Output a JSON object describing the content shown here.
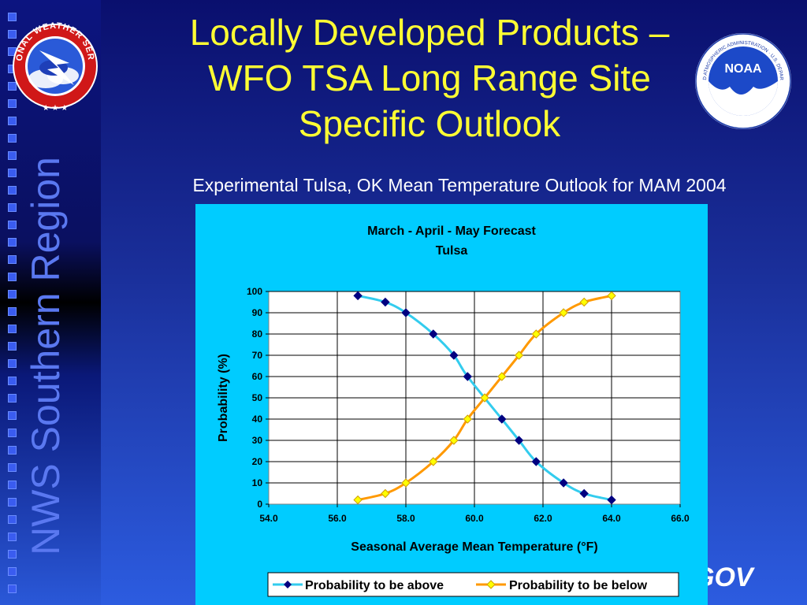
{
  "slide": {
    "title_lines": [
      "Locally Developed Products –",
      "WFO TSA Long Range Site",
      "Specific Outlook"
    ],
    "subtitle": "Experimental Tulsa, OK Mean Temperature Outlook for MAM 2004",
    "sidebar_label": "NWS Southern Region",
    "footer_url": "GOV",
    "colors": {
      "title": "#ffff33",
      "chart_background": "#00ccff",
      "series_above": "#33ccee",
      "series_above_marker": "#000080",
      "series_below": "#ff9900",
      "series_below_marker": "#ffff00"
    }
  },
  "logos": {
    "nws": {
      "icon": "nws-logo-icon",
      "ring_text": "NATIONAL WEATHER SERVICE"
    },
    "noaa": {
      "icon": "noaa-logo-icon",
      "center_text": "NOAA",
      "ring_text": "NATIONAL OCEANIC AND ATMOSPHERIC ADMINISTRATION · U.S. DEPARTMENT OF COMMERCE"
    }
  },
  "chart_data": {
    "type": "line",
    "title": "March - April - May Forecast",
    "subtitle": "Tulsa",
    "xlabel": "Seasonal Average Mean Temperature (°F)",
    "ylabel": "Probability (%)",
    "xlim": [
      54.0,
      66.0
    ],
    "ylim": [
      0,
      100
    ],
    "xticks": [
      54.0,
      56.0,
      58.0,
      60.0,
      62.0,
      64.0,
      66.0
    ],
    "xtick_labels": [
      "54.0",
      "56.0",
      "58.0",
      "60.0",
      "62.0",
      "64.0",
      "66.0"
    ],
    "yticks": [
      0,
      10,
      20,
      30,
      40,
      50,
      60,
      70,
      80,
      90,
      100
    ],
    "ytick_labels": [
      "0",
      "10",
      "20",
      "30",
      "40",
      "50",
      "60",
      "70",
      "80",
      "90",
      "100"
    ],
    "grid": true,
    "legend": "bottom",
    "series": [
      {
        "name": "Probability to be above",
        "x": [
          56.6,
          57.4,
          58.0,
          58.8,
          59.4,
          59.8,
          60.8,
          61.3,
          61.8,
          62.6,
          63.2,
          64.0
        ],
        "y": [
          98,
          95,
          90,
          80,
          70,
          60,
          40,
          30,
          20,
          10,
          5,
          2
        ]
      },
      {
        "name": "Probability to be below",
        "x": [
          56.6,
          57.4,
          58.0,
          58.8,
          59.4,
          59.8,
          60.3,
          60.8,
          61.3,
          61.8,
          62.6,
          63.2,
          64.0
        ],
        "y": [
          2,
          5,
          10,
          20,
          30,
          40,
          50,
          60,
          70,
          80,
          90,
          95,
          98
        ]
      }
    ]
  }
}
